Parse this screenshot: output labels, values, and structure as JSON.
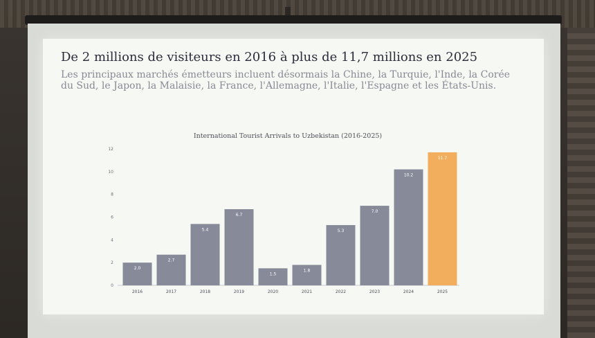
{
  "slide": {
    "title": "De 2 millions de visiteurs en 2016 à plus de 11,7 millions en 2025",
    "subtitle": "Les principaux marchés émetteurs incluent désormais la Chine, la Turquie, l'Inde, la Corée du Sud, le Japon, la Malaisie, la France, l'Allemagne, l'Italie, l'Espagne et les États-Unis."
  },
  "colors": {
    "bar": "#868a99",
    "highlight_bar": "#f2ae5c",
    "axis": "#9a9aa3"
  },
  "chart_data": {
    "type": "bar",
    "title": "International Tourist Arrivals to Uzbekistan (2016-2025)",
    "xlabel": "",
    "ylabel": "",
    "categories": [
      "2016",
      "2017",
      "2018",
      "2019",
      "2020",
      "2021",
      "2022",
      "2023",
      "2024",
      "2025"
    ],
    "values": [
      2.0,
      2.7,
      5.4,
      6.7,
      1.5,
      1.8,
      5.3,
      7.0,
      10.2,
      11.7
    ],
    "data_labels": [
      "2.0",
      "2.7",
      "5.4",
      "6.7",
      "1.5",
      "1.8",
      "5.3",
      "7.0",
      "10.2",
      "11.7"
    ],
    "highlight_category": "2025",
    "ylim": [
      0,
      12
    ],
    "yticks": [
      0,
      2,
      4,
      6,
      8,
      10,
      12
    ],
    "grid": false,
    "legend": "none"
  }
}
